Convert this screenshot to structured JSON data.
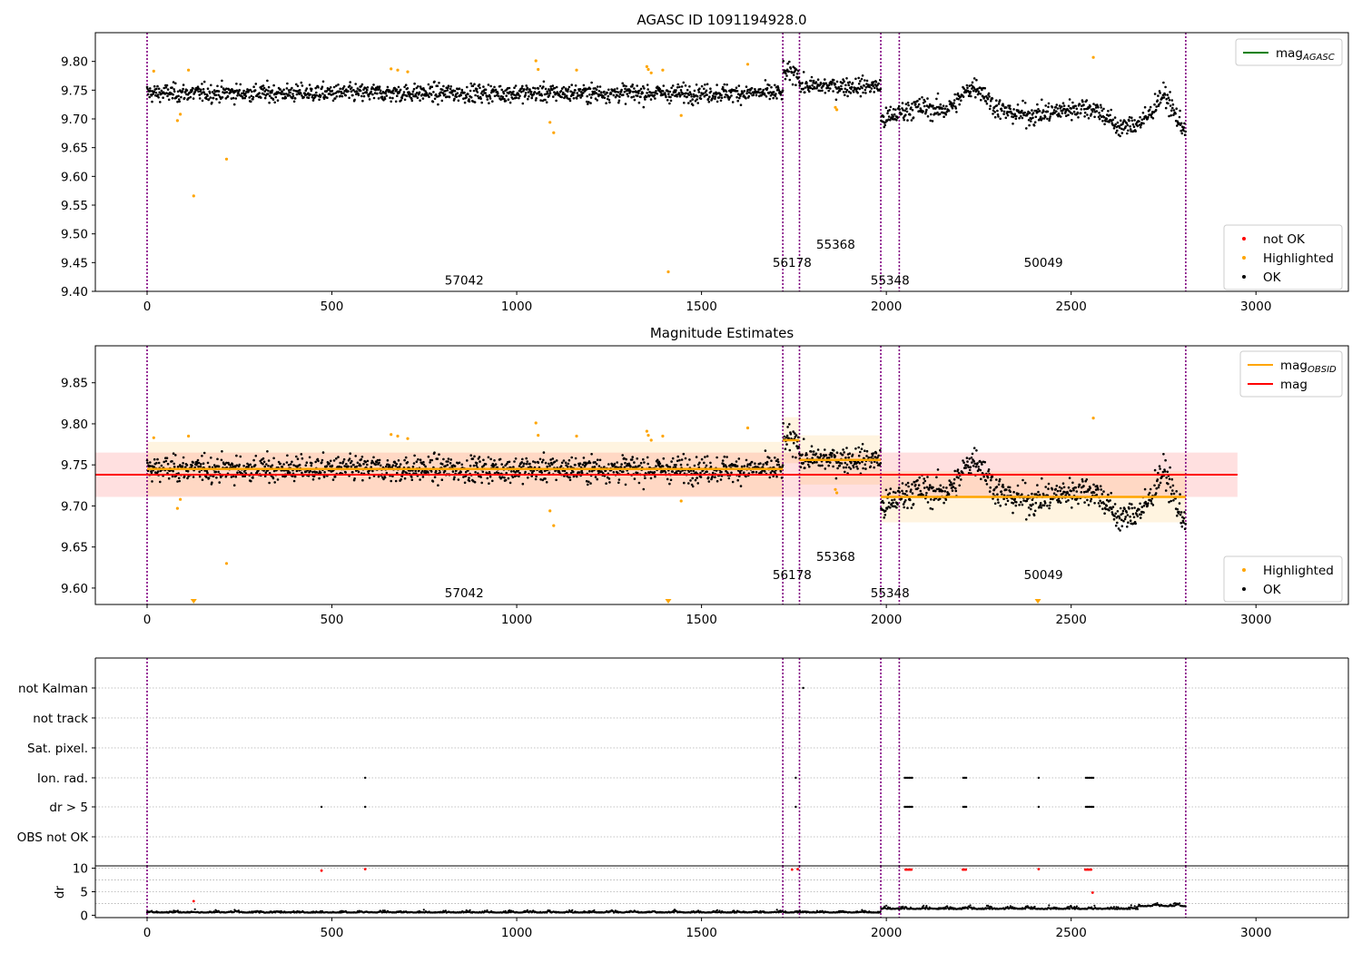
{
  "chart_data": [
    {
      "id": "agasc",
      "type": "scatter",
      "title": "AGASC ID 1091194928.0",
      "xlim": [
        -140,
        3250
      ],
      "ylim": [
        9.4,
        9.85
      ],
      "xticks": [
        0,
        500,
        1000,
        1500,
        2000,
        2500,
        3000
      ],
      "yticks": [
        9.4,
        9.45,
        9.5,
        9.55,
        9.6,
        9.65,
        9.7,
        9.75,
        9.8
      ],
      "vlines": [
        0,
        1720,
        1765,
        1985,
        2035,
        2810
      ],
      "obsid_labels": [
        {
          "text": "57042",
          "x": 858,
          "y": 9.412
        },
        {
          "text": "56178",
          "x": 1745,
          "y": 9.443
        },
        {
          "text": "55368",
          "x": 1863,
          "y": 9.474
        },
        {
          "text": "55348",
          "x": 2010,
          "y": 9.412
        },
        {
          "text": "50049",
          "x": 2425,
          "y": 9.443
        }
      ],
      "legend_top": [
        {
          "label": "mag",
          "sub": "AGASC",
          "color": "#008000"
        }
      ],
      "legend_bottom": [
        {
          "label": "not OK",
          "color": "#ff0000"
        },
        {
          "label": "Highlighted",
          "color": "#ffa500"
        },
        {
          "label": "OK",
          "color": "#000000"
        }
      ],
      "highlighted_points": [
        [
          18,
          9.783
        ],
        [
          82,
          9.697
        ],
        [
          90,
          9.708
        ],
        [
          112,
          9.785
        ],
        [
          126,
          9.566
        ],
        [
          215,
          9.63
        ],
        [
          660,
          9.787
        ],
        [
          678,
          9.785
        ],
        [
          705,
          9.782
        ],
        [
          1052,
          9.801
        ],
        [
          1058,
          9.786
        ],
        [
          1090,
          9.694
        ],
        [
          1100,
          9.676
        ],
        [
          1162,
          9.785
        ],
        [
          1352,
          9.791
        ],
        [
          1356,
          9.786
        ],
        [
          1364,
          9.78
        ],
        [
          1395,
          9.785
        ],
        [
          1410,
          9.434
        ],
        [
          1445,
          9.706
        ],
        [
          1625,
          9.795
        ],
        [
          1862,
          9.72
        ],
        [
          1866,
          9.716
        ],
        [
          2560,
          9.807
        ]
      ]
    },
    {
      "id": "estimates",
      "type": "scatter",
      "title": "Magnitude Estimates",
      "xlim": [
        -140,
        3250
      ],
      "ylim": [
        9.58,
        9.895
      ],
      "xticks": [
        0,
        500,
        1000,
        1500,
        2000,
        2500,
        3000
      ],
      "yticks": [
        9.6,
        9.65,
        9.7,
        9.75,
        9.8,
        9.85
      ],
      "vlines": [
        0,
        1720,
        1765,
        1985,
        2035,
        2810
      ],
      "obsid_labels": [
        {
          "text": "57042",
          "x": 858,
          "y": 9.589
        },
        {
          "text": "56178",
          "x": 1745,
          "y": 9.611
        },
        {
          "text": "55368",
          "x": 1863,
          "y": 9.633
        },
        {
          "text": "55348",
          "x": 2010,
          "y": 9.589
        },
        {
          "text": "50049",
          "x": 2425,
          "y": 9.611
        }
      ],
      "mag": {
        "value": 9.738,
        "band": [
          9.711,
          9.765
        ],
        "xrange": [
          -140,
          2950
        ]
      },
      "mag_obsid": [
        {
          "x": [
            0,
            1720
          ],
          "y": 9.745,
          "band": [
            9.712,
            9.778
          ]
        },
        {
          "x": [
            1720,
            1765
          ],
          "y": 9.78,
          "band": [
            9.752,
            9.808
          ]
        },
        {
          "x": [
            1765,
            1985
          ],
          "y": 9.756,
          "band": [
            9.726,
            9.786
          ]
        },
        {
          "x": [
            1985,
            2810
          ],
          "y": 9.711,
          "band": [
            9.68,
            9.742
          ]
        }
      ],
      "legend_top": [
        {
          "label": "mag",
          "sub": "OBSID",
          "color": "#ffa500"
        },
        {
          "label": "mag",
          "sub": "",
          "color": "#ff0000"
        }
      ],
      "legend_bottom": [
        {
          "label": "Highlighted",
          "color": "#ffa500"
        },
        {
          "label": "OK",
          "color": "#000000"
        }
      ],
      "highlighted_points": [
        [
          18,
          9.783
        ],
        [
          82,
          9.697
        ],
        [
          90,
          9.708
        ],
        [
          112,
          9.785
        ],
        [
          215,
          9.63
        ],
        [
          660,
          9.787
        ],
        [
          678,
          9.785
        ],
        [
          705,
          9.782
        ],
        [
          1052,
          9.801
        ],
        [
          1058,
          9.786
        ],
        [
          1090,
          9.694
        ],
        [
          1100,
          9.676
        ],
        [
          1162,
          9.785
        ],
        [
          1352,
          9.791
        ],
        [
          1356,
          9.786
        ],
        [
          1364,
          9.78
        ],
        [
          1395,
          9.785
        ],
        [
          1445,
          9.706
        ],
        [
          1625,
          9.795
        ],
        [
          1862,
          9.72
        ],
        [
          1866,
          9.716
        ],
        [
          2560,
          9.807
        ]
      ],
      "offscale_markers": [
        126,
        1410,
        2410
      ]
    },
    {
      "id": "flags",
      "type": "scatter",
      "title": "",
      "xlim": [
        -140,
        3250
      ],
      "categories": [
        "not Kalman",
        "not track",
        "Sat. pixel.",
        "Ion. rad.",
        "dr > 5",
        "OBS not OK"
      ],
      "vlines": [
        0,
        1720,
        1765,
        1985,
        2035,
        2810
      ],
      "flag_points": {
        "not Kalman": [
          1775
        ],
        "Ion. rad.": [
          590,
          1755,
          2050,
          2054,
          2058,
          2062,
          2066,
          2070,
          2208,
          2212,
          2216,
          2412,
          2540,
          2544,
          2548,
          2552,
          2556,
          2560
        ],
        "dr > 5": [
          472,
          590,
          1755,
          2050,
          2054,
          2058,
          2062,
          2066,
          2070,
          2208,
          2212,
          2216,
          2412,
          2540,
          2544,
          2548,
          2552,
          2556,
          2560
        ]
      }
    },
    {
      "id": "dr",
      "type": "scatter",
      "title": "",
      "ylabel": "dr",
      "xlim": [
        -140,
        3250
      ],
      "ylim": [
        -0.5,
        10.5
      ],
      "xticks": [
        0,
        500,
        1000,
        1500,
        2000,
        2500,
        3000
      ],
      "yticks": [
        0,
        5,
        10
      ],
      "vlines": [
        0,
        1720,
        1765,
        1985,
        2035,
        2810
      ],
      "red_points": [
        [
          126,
          3.0
        ],
        [
          472,
          9.5
        ],
        [
          590,
          9.8
        ],
        [
          1745,
          9.7
        ],
        [
          1760,
          9.8
        ],
        [
          2052,
          9.7
        ],
        [
          2056,
          9.7
        ],
        [
          2060,
          9.7
        ],
        [
          2064,
          9.7
        ],
        [
          2068,
          9.7
        ],
        [
          2207,
          9.7
        ],
        [
          2211,
          9.7
        ],
        [
          2215,
          9.7
        ],
        [
          2412,
          9.8
        ],
        [
          2538,
          9.7
        ],
        [
          2542,
          9.7
        ],
        [
          2546,
          9.7
        ],
        [
          2550,
          9.7
        ],
        [
          2554,
          9.7
        ],
        [
          2558,
          4.8
        ]
      ]
    }
  ]
}
